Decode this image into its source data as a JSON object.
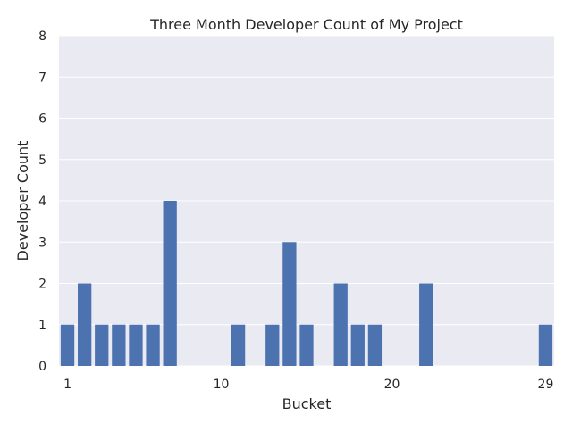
{
  "chart_data": {
    "type": "bar",
    "title": "Three Month Developer Count of My Project",
    "xlabel": "Bucket",
    "ylabel": "Developer Count",
    "x": [
      1,
      2,
      3,
      4,
      5,
      6,
      7,
      8,
      9,
      10,
      11,
      12,
      13,
      14,
      15,
      16,
      17,
      18,
      19,
      20,
      21,
      22,
      23,
      24,
      25,
      26,
      27,
      28,
      29
    ],
    "values": [
      1,
      2,
      1,
      1,
      1,
      1,
      4,
      0,
      0,
      0,
      1,
      0,
      1,
      3,
      1,
      0,
      2,
      1,
      1,
      0,
      0,
      2,
      0,
      0,
      0,
      0,
      0,
      0,
      1
    ],
    "ylim": [
      0,
      8
    ],
    "yticks": [
      0,
      1,
      2,
      3,
      4,
      5,
      6,
      7,
      8
    ],
    "xtick_labels": [
      {
        "bucket": 1,
        "label": "1"
      },
      {
        "bucket": 10,
        "label": "10"
      },
      {
        "bucket": 20,
        "label": "20"
      },
      {
        "bucket": 29,
        "label": "29"
      }
    ],
    "grid": true,
    "colors": {
      "plot_background": "#eaeaf2",
      "grid": "#ffffff",
      "bar": "#4c72b0"
    }
  }
}
